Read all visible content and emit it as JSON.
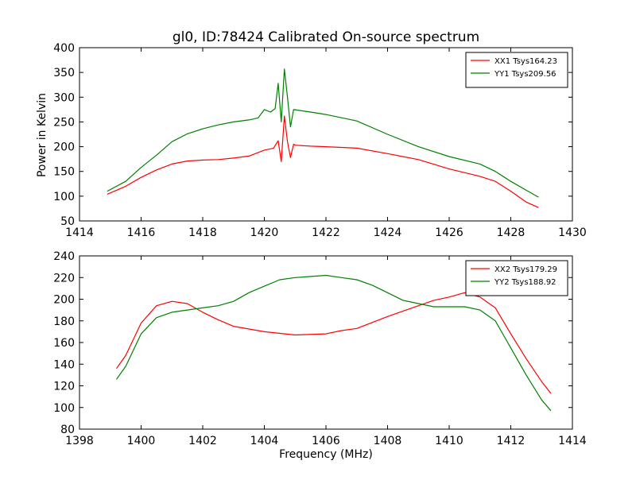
{
  "figure": {
    "title": "gl0, ID:78424 Calibrated On-source spectrum",
    "ylabel": "Power in Kelvin",
    "xlabel": "Frequency (MHz)"
  },
  "chart_data": [
    {
      "type": "line",
      "title": "gl0, ID:78424 Calibrated On-source spectrum",
      "xlabel": "",
      "ylabel": "Power in Kelvin",
      "xlim": [
        1414,
        1430
      ],
      "ylim": [
        50,
        400
      ],
      "xticks": [
        1414,
        1416,
        1418,
        1420,
        1422,
        1424,
        1426,
        1428,
        1430
      ],
      "yticks": [
        50,
        100,
        150,
        200,
        250,
        300,
        350,
        400
      ],
      "legend_position": "top-right",
      "grid": false,
      "series": [
        {
          "name": "XX1 Tsys164.23",
          "color": "#ff0000",
          "points": [
            [
              1414.9,
              104
            ],
            [
              1415.5,
              120
            ],
            [
              1416,
              138
            ],
            [
              1416.5,
              153
            ],
            [
              1417,
              165
            ],
            [
              1417.5,
              171
            ],
            [
              1418,
              173
            ],
            [
              1418.5,
              174
            ],
            [
              1419,
              177
            ],
            [
              1419.5,
              181
            ],
            [
              1420,
              193
            ],
            [
              1420.3,
              197
            ],
            [
              1420.45,
              212
            ],
            [
              1420.55,
              170
            ],
            [
              1420.65,
              262
            ],
            [
              1420.75,
              210
            ],
            [
              1420.85,
              178
            ],
            [
              1420.95,
              205
            ],
            [
              1421,
              203
            ],
            [
              1421.5,
              201
            ],
            [
              1422,
              200
            ],
            [
              1423,
              197
            ],
            [
              1424,
              186
            ],
            [
              1425,
              174
            ],
            [
              1426,
              155
            ],
            [
              1427,
              140
            ],
            [
              1427.5,
              130
            ],
            [
              1428,
              110
            ],
            [
              1428.5,
              88
            ],
            [
              1428.9,
              77
            ]
          ]
        },
        {
          "name": "YY1 Tsys209.56",
          "color": "#008000",
          "points": [
            [
              1414.9,
              110
            ],
            [
              1415.5,
              130
            ],
            [
              1416,
              158
            ],
            [
              1416.5,
              183
            ],
            [
              1417,
              210
            ],
            [
              1417.5,
              226
            ],
            [
              1418,
              236
            ],
            [
              1418.5,
              244
            ],
            [
              1419,
              250
            ],
            [
              1419.5,
              254
            ],
            [
              1419.8,
              258
            ],
            [
              1420,
              275
            ],
            [
              1420.2,
              270
            ],
            [
              1420.35,
              277
            ],
            [
              1420.45,
              328
            ],
            [
              1420.55,
              250
            ],
            [
              1420.65,
              357
            ],
            [
              1420.75,
              300
            ],
            [
              1420.85,
              240
            ],
            [
              1420.95,
              275
            ],
            [
              1421.5,
              270
            ],
            [
              1422,
              265
            ],
            [
              1423,
              252
            ],
            [
              1424,
              225
            ],
            [
              1425,
              200
            ],
            [
              1426,
              180
            ],
            [
              1427,
              165
            ],
            [
              1427.5,
              150
            ],
            [
              1428,
              130
            ],
            [
              1428.5,
              112
            ],
            [
              1428.9,
              98
            ]
          ]
        }
      ]
    },
    {
      "type": "line",
      "title": "",
      "xlabel": "Frequency (MHz)",
      "ylabel": "",
      "xlim": [
        1398,
        1414
      ],
      "ylim": [
        80,
        240
      ],
      "xticks": [
        1398,
        1400,
        1402,
        1404,
        1406,
        1408,
        1410,
        1412,
        1414
      ],
      "yticks": [
        80,
        100,
        120,
        140,
        160,
        180,
        200,
        220,
        240
      ],
      "legend_position": "top-right",
      "grid": false,
      "series": [
        {
          "name": "XX2 Tsys179.29",
          "color": "#ff0000",
          "points": [
            [
              1399.2,
              136
            ],
            [
              1399.5,
              148
            ],
            [
              1400,
              178
            ],
            [
              1400.5,
              194
            ],
            [
              1401,
              198
            ],
            [
              1401.5,
              196
            ],
            [
              1402,
              188
            ],
            [
              1402.5,
              181
            ],
            [
              1403,
              175
            ],
            [
              1404,
              170
            ],
            [
              1405,
              167
            ],
            [
              1406,
              168
            ],
            [
              1406.5,
              171
            ],
            [
              1407,
              173
            ],
            [
              1408,
              184
            ],
            [
              1409,
              194
            ],
            [
              1409.5,
              199
            ],
            [
              1410,
              202
            ],
            [
              1410.5,
              206
            ],
            [
              1411,
              202
            ],
            [
              1411.5,
              192
            ],
            [
              1412,
              168
            ],
            [
              1412.5,
              145
            ],
            [
              1413,
              124
            ],
            [
              1413.3,
              113
            ]
          ]
        },
        {
          "name": "YY2 Tsys188.92",
          "color": "#008000",
          "points": [
            [
              1399.2,
              126
            ],
            [
              1399.5,
              138
            ],
            [
              1400,
              168
            ],
            [
              1400.5,
              183
            ],
            [
              1401,
              188
            ],
            [
              1401.5,
              190
            ],
            [
              1402,
              192
            ],
            [
              1402.5,
              194
            ],
            [
              1403,
              198
            ],
            [
              1403.5,
              206
            ],
            [
              1404,
              212
            ],
            [
              1404.5,
              218
            ],
            [
              1405,
              220
            ],
            [
              1405.5,
              221
            ],
            [
              1406,
              222
            ],
            [
              1406.5,
              220
            ],
            [
              1407,
              218
            ],
            [
              1407.5,
              213
            ],
            [
              1408,
              206
            ],
            [
              1408.5,
              199
            ],
            [
              1409,
              196
            ],
            [
              1409.5,
              193
            ],
            [
              1410,
              193
            ],
            [
              1410.5,
              193
            ],
            [
              1411,
              190
            ],
            [
              1411.5,
              180
            ],
            [
              1412,
              155
            ],
            [
              1412.5,
              130
            ],
            [
              1413,
              107
            ],
            [
              1413.3,
              97
            ]
          ]
        }
      ]
    }
  ]
}
